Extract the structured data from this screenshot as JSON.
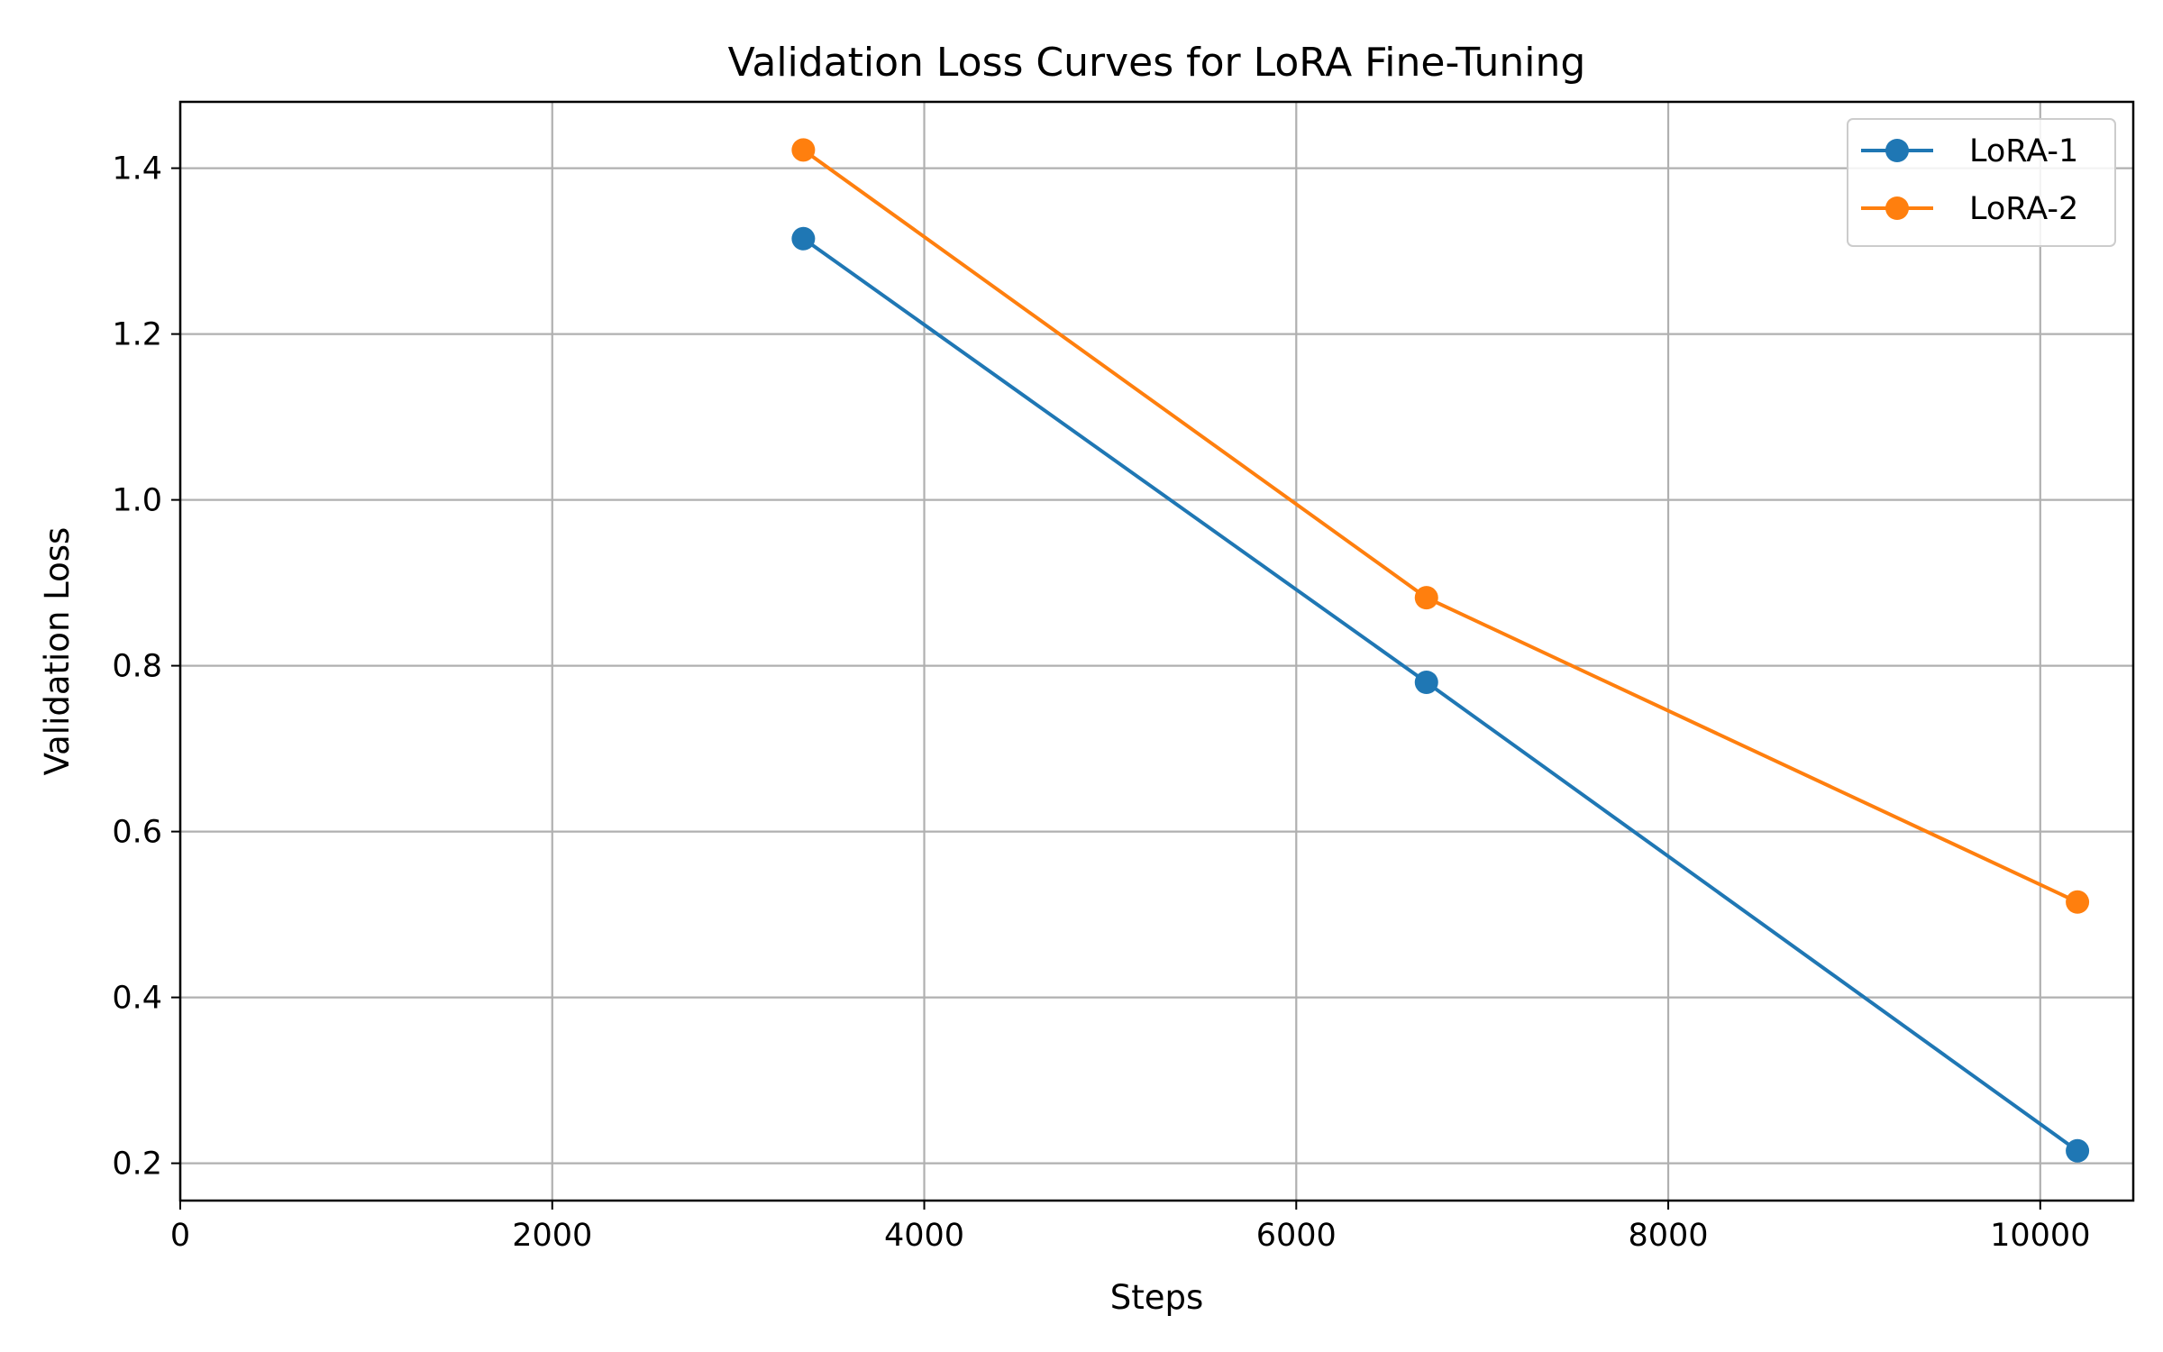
{
  "chart_data": {
    "type": "line",
    "title": "Validation Loss Curves for LoRA Fine-Tuning",
    "xlabel": "Steps",
    "ylabel": "Validation Loss",
    "xlim": [
      0,
      10500
    ],
    "ylim": [
      0.155,
      1.48
    ],
    "xticks": [
      0,
      2000,
      4000,
      6000,
      8000,
      10000
    ],
    "xtick_labels": [
      "0",
      "2000",
      "4000",
      "6000",
      "8000",
      "10000"
    ],
    "yticks": [
      0.2,
      0.4,
      0.6,
      0.8,
      1.0,
      1.2,
      1.4
    ],
    "ytick_labels": [
      "0.2",
      "0.4",
      "0.6",
      "0.8",
      "1.0",
      "1.2",
      "1.4"
    ],
    "grid": true,
    "legend_position": "top-right",
    "marker": "circle",
    "series": [
      {
        "name": "LoRA-1",
        "color": "#1f77b4",
        "x": [
          3350,
          6700,
          10200
        ],
        "y": [
          1.315,
          0.78,
          0.215
        ]
      },
      {
        "name": "LoRA-2",
        "color": "#ff7f0e",
        "x": [
          3350,
          6700,
          10200
        ],
        "y": [
          1.422,
          0.882,
          0.515
        ]
      }
    ]
  }
}
